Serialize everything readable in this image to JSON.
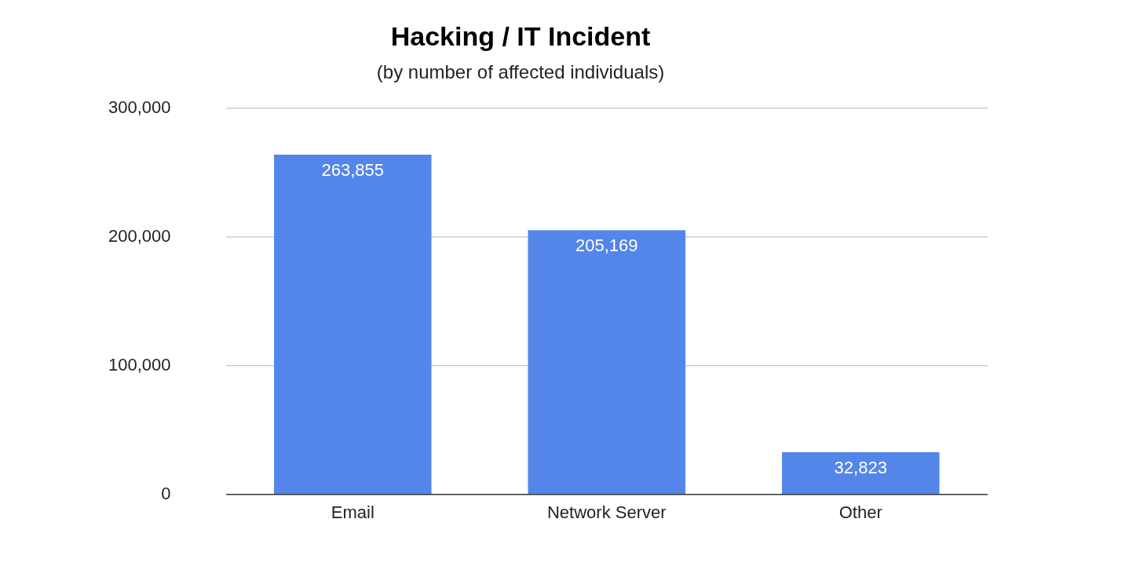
{
  "chart_data": {
    "type": "bar",
    "title": "Hacking / IT Incident",
    "subtitle": "(by number of affected individuals)",
    "categories": [
      "Email",
      "Network Server",
      "Other"
    ],
    "values": [
      263855,
      205169,
      32823
    ],
    "value_labels": [
      "263,855",
      "205,169",
      "32,823"
    ],
    "color": "#5486ea",
    "ylim": [
      0,
      300000
    ],
    "yticks": [
      {
        "value": 0,
        "label": "0"
      },
      {
        "value": 100000,
        "label": "100,000"
      },
      {
        "value": 200000,
        "label": "200,000"
      },
      {
        "value": 300000,
        "label": "300,000"
      }
    ],
    "grid": "y",
    "legend": false
  }
}
